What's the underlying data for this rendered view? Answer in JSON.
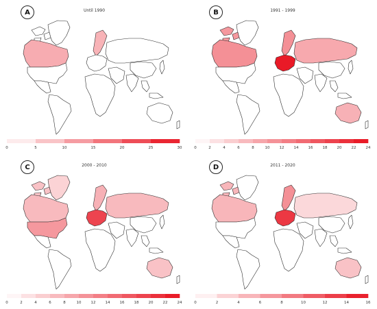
{
  "panels": [
    {
      "letter": "A",
      "title": "Until 1990",
      "max": 30,
      "ticks": [
        "0",
        "5",
        "10",
        "15",
        "20",
        "25",
        "30"
      ],
      "regions": [
        {
          "name": "Greenland",
          "value": 0
        },
        {
          "name": "Canadian Arctic",
          "value": 0
        },
        {
          "name": "Canada",
          "value": 7
        },
        {
          "name": "USA",
          "value": 0
        },
        {
          "name": "Mexico",
          "value": 0
        },
        {
          "name": "South America",
          "value": 0
        },
        {
          "name": "Scandinavia",
          "value": 6
        },
        {
          "name": "Western Europe",
          "value": 0
        },
        {
          "name": "Russia",
          "value": 0
        },
        {
          "name": "Africa",
          "value": 0
        },
        {
          "name": "Middle East",
          "value": 0
        },
        {
          "name": "India",
          "value": 0
        },
        {
          "name": "China",
          "value": 0
        },
        {
          "name": "Southeast Asia",
          "value": 0
        },
        {
          "name": "Japan",
          "value": 0
        },
        {
          "name": "Australia",
          "value": 0
        },
        {
          "name": "New Zealand",
          "value": 0
        }
      ]
    },
    {
      "letter": "B",
      "title": "1991 - 1999",
      "max": 24,
      "ticks": [
        "0",
        "2",
        "4",
        "6",
        "8",
        "10",
        "12",
        "14",
        "16",
        "18",
        "20",
        "22",
        "24"
      ],
      "regions": [
        {
          "name": "Greenland",
          "value": 0
        },
        {
          "name": "Canadian Arctic",
          "value": 8
        },
        {
          "name": "Canada",
          "value": 9
        },
        {
          "name": "USA",
          "value": 0
        },
        {
          "name": "Mexico",
          "value": 0
        },
        {
          "name": "South America",
          "value": 0
        },
        {
          "name": "Scandinavia",
          "value": 9
        },
        {
          "name": "Western Europe",
          "value": 23
        },
        {
          "name": "Russia",
          "value": 6
        },
        {
          "name": "Africa",
          "value": 0
        },
        {
          "name": "Middle East",
          "value": 0
        },
        {
          "name": "India",
          "value": 0
        },
        {
          "name": "China",
          "value": 0
        },
        {
          "name": "Southeast Asia",
          "value": 0
        },
        {
          "name": "Japan",
          "value": 0
        },
        {
          "name": "Australia",
          "value": 5
        },
        {
          "name": "New Zealand",
          "value": 0
        }
      ]
    },
    {
      "letter": "C",
      "title": "2000 - 2010",
      "max": 24,
      "ticks": [
        "0",
        "2",
        "4",
        "6",
        "8",
        "10",
        "12",
        "14",
        "16",
        "18",
        "20",
        "22",
        "24"
      ],
      "regions": [
        {
          "name": "Greenland",
          "value": 1
        },
        {
          "name": "Canadian Arctic",
          "value": 3
        },
        {
          "name": "Canada",
          "value": 4
        },
        {
          "name": "USA",
          "value": 8
        },
        {
          "name": "Mexico",
          "value": 0
        },
        {
          "name": "South America",
          "value": 0
        },
        {
          "name": "Scandinavia",
          "value": 5
        },
        {
          "name": "Western Europe",
          "value": 18
        },
        {
          "name": "Russia",
          "value": 4
        },
        {
          "name": "Africa",
          "value": 0
        },
        {
          "name": "Middle East",
          "value": 0
        },
        {
          "name": "India",
          "value": 0
        },
        {
          "name": "China",
          "value": 0
        },
        {
          "name": "Southeast Asia",
          "value": 0
        },
        {
          "name": "Japan",
          "value": 0
        },
        {
          "name": "Australia",
          "value": 3
        },
        {
          "name": "New Zealand",
          "value": 0
        }
      ]
    },
    {
      "letter": "D",
      "title": "2011 - 2020",
      "max": 16,
      "ticks": [
        "0",
        "2",
        "4",
        "6",
        "8",
        "10",
        "12",
        "14",
        "16"
      ],
      "regions": [
        {
          "name": "Greenland",
          "value": 0
        },
        {
          "name": "Canadian Arctic",
          "value": 3
        },
        {
          "name": "Canada",
          "value": 3
        },
        {
          "name": "USA",
          "value": 0
        },
        {
          "name": "Mexico",
          "value": 0
        },
        {
          "name": "South America",
          "value": 0
        },
        {
          "name": "Scandinavia",
          "value": 6
        },
        {
          "name": "Western Europe",
          "value": 13
        },
        {
          "name": "Russia",
          "value": 0.3
        },
        {
          "name": "Africa",
          "value": 0
        },
        {
          "name": "Middle East",
          "value": 0
        },
        {
          "name": "India",
          "value": 0
        },
        {
          "name": "China",
          "value": 0
        },
        {
          "name": "Southeast Asia",
          "value": 0
        },
        {
          "name": "Japan",
          "value": 0
        },
        {
          "name": "Australia",
          "value": 2
        },
        {
          "name": "New Zealand",
          "value": 0
        }
      ]
    }
  ],
  "colors": {
    "low": "#ffffff",
    "high": "#e8121f",
    "outline": "#2a2a2a"
  }
}
